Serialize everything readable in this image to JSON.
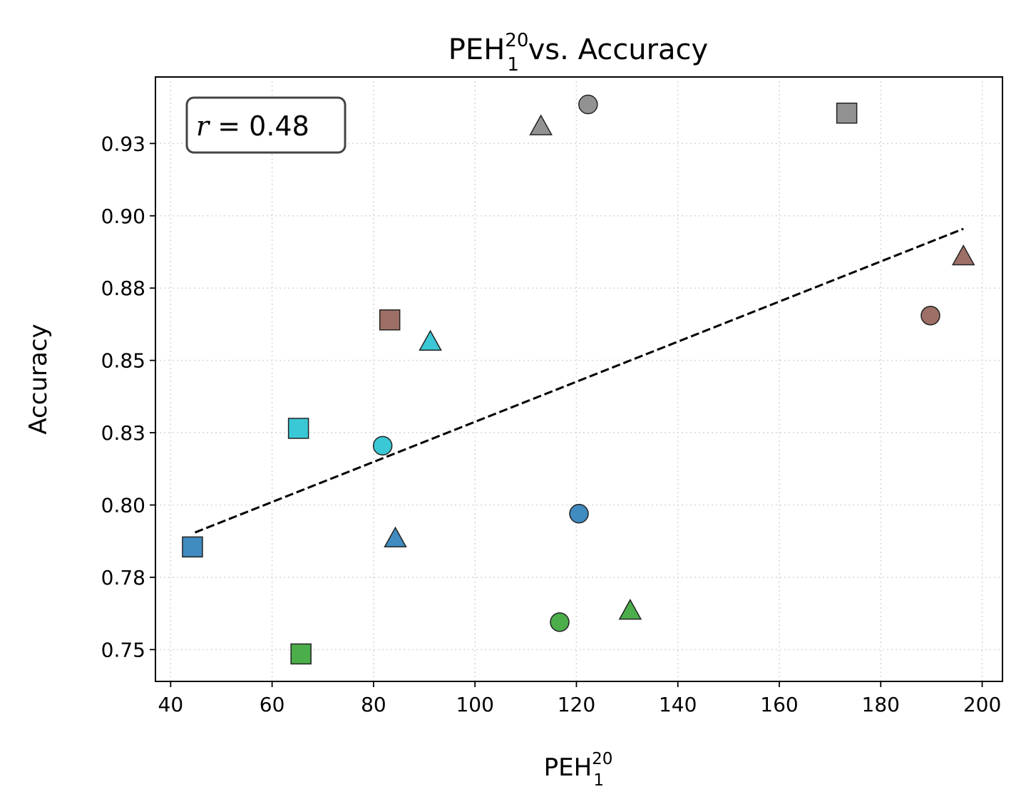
{
  "chart_data": {
    "type": "scatter",
    "title": {
      "base": "PEH",
      "sub": "1",
      "sup": "20",
      "rest": " vs. Accuracy"
    },
    "xlabel": {
      "base": "PEH",
      "sub": "1",
      "sup": "20"
    },
    "ylabel": "Accuracy",
    "xlim": [
      37,
      204
    ],
    "ylim": [
      0.739,
      0.948
    ],
    "xticks": [
      40,
      60,
      80,
      100,
      120,
      140,
      160,
      180,
      200
    ],
    "yticks": [
      0.75,
      0.775,
      0.8,
      0.825,
      0.85,
      0.875,
      0.9,
      0.925
    ],
    "ytick_labels": [
      "0.75",
      "0.78",
      "0.80",
      "0.83",
      "0.85",
      "0.88",
      "0.90",
      "0.93"
    ],
    "grid": true,
    "annotation": {
      "lhs": "r",
      "rhs": " = 0.48",
      "position": "top-left"
    },
    "fit_line": {
      "x": [
        44.8,
        196.3
      ],
      "y": [
        0.7905,
        0.8955
      ]
    },
    "points": [
      {
        "x": 122.3,
        "y": 0.9385,
        "marker": "circle",
        "color": "#7f7f7f"
      },
      {
        "x": 113.0,
        "y": 0.931,
        "marker": "triangle",
        "color": "#7f7f7f"
      },
      {
        "x": 173.3,
        "y": 0.9355,
        "marker": "square",
        "color": "#7f7f7f"
      },
      {
        "x": 196.3,
        "y": 0.886,
        "marker": "triangle",
        "color": "#8c564b"
      },
      {
        "x": 189.8,
        "y": 0.8655,
        "marker": "circle",
        "color": "#8c564b"
      },
      {
        "x": 83.2,
        "y": 0.864,
        "marker": "square",
        "color": "#8c564b"
      },
      {
        "x": 91.2,
        "y": 0.8565,
        "marker": "triangle",
        "color": "#17becf"
      },
      {
        "x": 65.2,
        "y": 0.8265,
        "marker": "square",
        "color": "#17becf"
      },
      {
        "x": 81.8,
        "y": 0.8205,
        "marker": "circle",
        "color": "#17becf"
      },
      {
        "x": 120.5,
        "y": 0.797,
        "marker": "circle",
        "color": "#1f77b4"
      },
      {
        "x": 84.3,
        "y": 0.7885,
        "marker": "triangle",
        "color": "#1f77b4"
      },
      {
        "x": 44.3,
        "y": 0.7855,
        "marker": "square",
        "color": "#1f77b4"
      },
      {
        "x": 130.6,
        "y": 0.7635,
        "marker": "triangle",
        "color": "#2ca02c"
      },
      {
        "x": 116.7,
        "y": 0.7595,
        "marker": "circle",
        "color": "#2ca02c"
      },
      {
        "x": 65.7,
        "y": 0.7485,
        "marker": "square",
        "color": "#2ca02c"
      }
    ]
  }
}
